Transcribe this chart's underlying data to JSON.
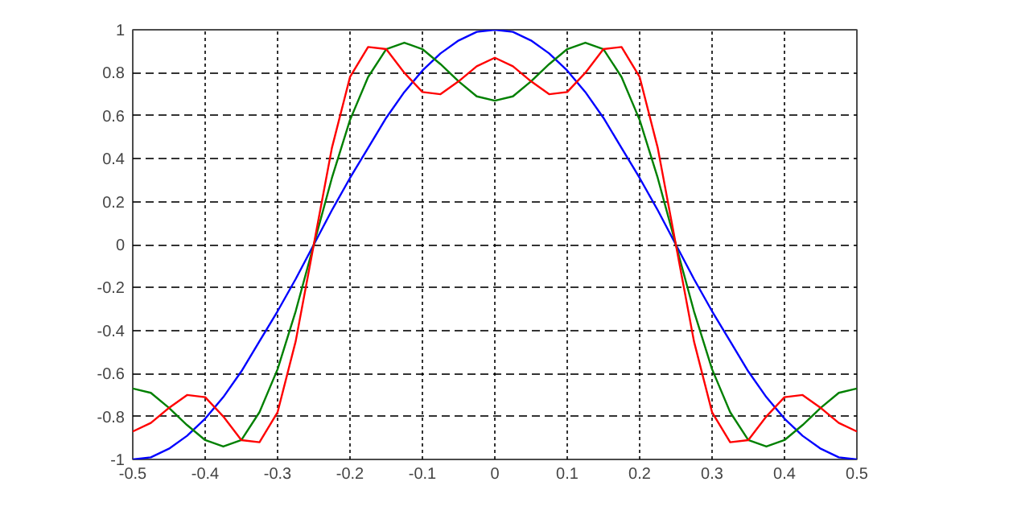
{
  "chart_data": {
    "type": "line",
    "x": [
      -0.5,
      -0.475,
      -0.45,
      -0.425,
      -0.4,
      -0.375,
      -0.35,
      -0.325,
      -0.3,
      -0.275,
      -0.25,
      -0.225,
      -0.2,
      -0.175,
      -0.15,
      -0.125,
      -0.1,
      -0.075,
      -0.05,
      -0.025,
      0,
      0.025,
      0.05,
      0.075,
      0.1,
      0.125,
      0.15,
      0.175,
      0.2,
      0.225,
      0.25,
      0.275,
      0.3,
      0.325,
      0.35,
      0.375,
      0.4,
      0.425,
      0.45,
      0.475,
      0.5
    ],
    "series": [
      {
        "color": "#0000ff",
        "values": [
          -1,
          -0.99,
          -0.95,
          -0.89,
          -0.81,
          -0.71,
          -0.59,
          -0.45,
          -0.31,
          -0.16,
          0,
          0.16,
          0.31,
          0.45,
          0.59,
          0.71,
          0.81,
          0.89,
          0.95,
          0.99,
          1,
          0.99,
          0.95,
          0.89,
          0.81,
          0.71,
          0.59,
          0.45,
          0.31,
          0.16,
          0,
          -0.16,
          -0.31,
          -0.45,
          -0.59,
          -0.71,
          -0.81,
          -0.89,
          -0.95,
          -0.99,
          -1
        ]
      },
      {
        "color": "#008000",
        "values": [
          -0.67,
          -0.69,
          -0.76,
          -0.84,
          -0.91,
          -0.94,
          -0.91,
          -0.78,
          -0.58,
          -0.31,
          0,
          0.31,
          0.58,
          0.78,
          0.91,
          0.94,
          0.91,
          0.84,
          0.76,
          0.69,
          0.67,
          0.69,
          0.76,
          0.84,
          0.91,
          0.94,
          0.91,
          0.78,
          0.58,
          0.31,
          0,
          -0.31,
          -0.58,
          -0.78,
          -0.91,
          -0.94,
          -0.91,
          -0.84,
          -0.76,
          -0.69,
          -0.67
        ]
      },
      {
        "color": "#ff0000",
        "values": [
          -0.87,
          -0.83,
          -0.76,
          -0.7,
          -0.71,
          -0.8,
          -0.91,
          -0.92,
          -0.78,
          -0.45,
          0,
          0.45,
          0.78,
          0.92,
          0.91,
          0.8,
          0.71,
          0.7,
          0.76,
          0.83,
          0.87,
          0.83,
          0.76,
          0.7,
          0.71,
          0.8,
          0.91,
          0.92,
          0.78,
          0.45,
          0,
          -0.45,
          -0.78,
          -0.92,
          -0.91,
          -0.8,
          -0.71,
          -0.7,
          -0.76,
          -0.83,
          -0.87
        ]
      }
    ],
    "xlim": [
      -0.5,
      0.5
    ],
    "xticks": [
      -0.5,
      -0.4,
      -0.3,
      -0.2,
      -0.1,
      0,
      0.1,
      0.2,
      0.3,
      0.4,
      0.5
    ],
    "ylim": [
      -1,
      1
    ],
    "yticks": [
      -1,
      -0.8,
      -0.6,
      -0.4,
      -0.2,
      0,
      0.2,
      0.4,
      0.6,
      0.8,
      1
    ],
    "grid": true,
    "marker": "none",
    "line_style": "solid"
  }
}
